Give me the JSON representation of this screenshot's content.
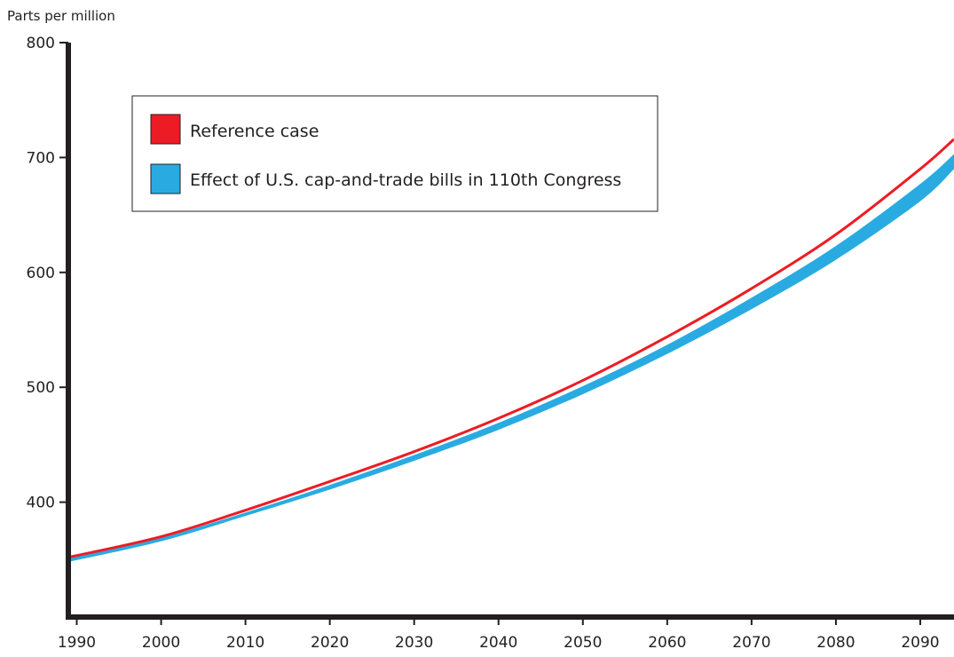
{
  "chart_data": {
    "type": "line",
    "title": "",
    "ylabel": "Parts per million",
    "xlabel": "",
    "xlim": [
      1989,
      2094
    ],
    "ylim": [
      300,
      800
    ],
    "x_ticks": [
      1990,
      2000,
      2010,
      2020,
      2030,
      2040,
      2050,
      2060,
      2070,
      2080,
      2090
    ],
    "y_ticks": [
      400,
      500,
      600,
      700,
      800
    ],
    "grid": false,
    "legend_position": "top-left",
    "series": [
      {
        "name": "Reference case",
        "color": "#ed1c24",
        "style": "line",
        "x": [
          1989,
          2000,
          2010,
          2020,
          2030,
          2040,
          2050,
          2060,
          2070,
          2080,
          2090,
          2094
        ],
        "y": [
          352,
          370,
          393,
          418,
          444,
          473,
          506,
          544,
          586,
          633,
          690,
          716
        ]
      },
      {
        "name": "Effect of U.S. cap-and-trade bills in 110th Congress",
        "color": "#29abe2",
        "style": "band",
        "x": [
          1989,
          2000,
          2010,
          2020,
          2030,
          2040,
          2050,
          2060,
          2070,
          2080,
          2090,
          2094
        ],
        "y_upper": [
          351,
          369,
          391,
          415,
          441,
          469,
          501,
          537,
          578,
          623,
          677,
          703
        ],
        "y_lower": [
          348,
          366,
          388,
          411,
          436,
          463,
          494,
          529,
          568,
          611,
          662,
          690
        ]
      }
    ]
  }
}
